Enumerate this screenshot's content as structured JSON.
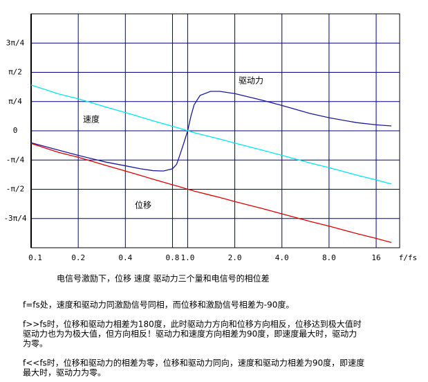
{
  "chart_data": {
    "type": "line",
    "xscale": "log",
    "grid": true,
    "x_label": "f/fs",
    "xlim": [
      0.1,
      22.6
    ],
    "xticks": [
      0.1,
      0.2,
      0.4,
      {
        "value": 0.8,
        "label": "0.8"
      },
      {
        "value": 1,
        "label": "1.0"
      },
      {
        "value": 2,
        "label": "2.0"
      },
      {
        "value": 4,
        "label": "4.0"
      },
      {
        "value": 8,
        "label": "8.0"
      },
      16
    ],
    "ylim": [
      -3.1416,
      3.1416
    ],
    "yticks": [
      {
        "value": 2.3562,
        "label": "3π/4"
      },
      {
        "value": 1.5708,
        "label": "π/2"
      },
      {
        "value": 0.7854,
        "label": "π/4"
      },
      0,
      {
        "value": -0.7854,
        "label": "-π/4"
      },
      {
        "value": -1.5708,
        "label": "-π/2"
      },
      {
        "value": -2.3562,
        "label": "-3π/4"
      }
    ],
    "x": [
      0.1,
      0.15,
      0.2,
      0.3,
      0.4,
      0.5,
      0.6,
      0.7,
      0.8,
      0.85,
      0.9,
      0.95,
      1.0,
      1.05,
      1.1,
      1.2,
      1.4,
      1.6,
      2.0,
      3,
      4,
      6,
      8,
      12,
      16,
      20
    ],
    "series": [
      {
        "name": "驱动力",
        "color": "#1a1a9c",
        "label_color": "#3a1a9a",
        "values": [
          -0.32,
          -0.52,
          -0.66,
          -0.84,
          -0.94,
          -1.02,
          -1.07,
          -1.08,
          -1.02,
          -0.9,
          -0.6,
          -0.3,
          0,
          0.4,
          0.7,
          0.95,
          1.06,
          1.06,
          1.0,
          0.82,
          0.68,
          0.47,
          0.35,
          0.22,
          0.16,
          0.13
        ]
      },
      {
        "name": "速度",
        "color": "#00e8f0",
        "label_color": "#5aaee0",
        "values": [
          1.23,
          0.99,
          0.86,
          0.64,
          0.49,
          0.37,
          0.27,
          0.19,
          0.12,
          0.09,
          0.06,
          0.03,
          0,
          -0.02,
          -0.05,
          -0.09,
          -0.16,
          -0.22,
          -0.33,
          -0.52,
          -0.66,
          -0.86,
          -0.99,
          -1.19,
          -1.32,
          -1.43
        ]
      },
      {
        "name": "位移",
        "color": "#e00000",
        "label_color": "#e00000",
        "values": [
          -0.34,
          -0.58,
          -0.71,
          -0.93,
          -1.08,
          -1.2,
          -1.3,
          -1.38,
          -1.45,
          -1.48,
          -1.51,
          -1.54,
          -1.57,
          -1.59,
          -1.62,
          -1.66,
          -1.73,
          -1.79,
          -1.9,
          -2.09,
          -2.23,
          -2.43,
          -2.56,
          -2.76,
          -2.89,
          -3.0
        ]
      }
    ]
  },
  "text": {
    "caption": "电信号激励下，位移 速度 驱动力三个量和电信号的相位差",
    "paragraphs": [
      [
        "f=fs处，速度和驱动力同激励信号同相，而位移和激励信号相差为-90度。"
      ],
      [
        "f>>fs时，位移和驱动力相差为180度，此时驱动力方向和位移方向相反，位移达到极大值时",
        "驱动力也为为极大值，但方向相反！驱动力和速度方向相差为90度，即速度最大时，驱动力",
        "为零。"
      ],
      [
        "f<<fs时，位移和驱动力的相差为零，位移和驱动力同向，速度和驱动力相差为90度，即速度",
        "最大时，驱动力为零。"
      ]
    ]
  }
}
